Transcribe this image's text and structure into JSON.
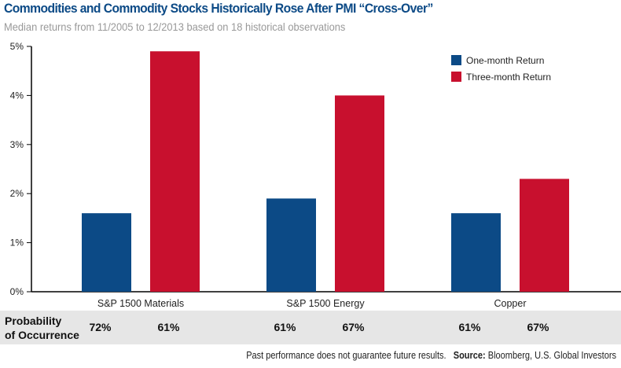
{
  "chart_data": {
    "type": "bar",
    "title": "Commodities and Commodity Stocks Historically Rose After PMI “Cross-Over”",
    "subtitle": "Median returns from 11/2005 to 12/2013 based on 18 historical observations",
    "categories": [
      "S&P 1500 Materials",
      "S&P 1500 Energy",
      "Copper"
    ],
    "series": [
      {
        "name": "One-month Return",
        "color": "#0c4a86",
        "values": [
          1.6,
          1.9,
          1.6
        ]
      },
      {
        "name": "Three-month Return",
        "color": "#c8102e",
        "values": [
          4.9,
          4.0,
          2.3
        ]
      }
    ],
    "ylim": [
      0,
      5
    ],
    "yticks": [
      "0%",
      "1%",
      "2%",
      "3%",
      "4%",
      "5%"
    ],
    "legend": "top-right",
    "grid": false,
    "probability": {
      "label_line1": "Probability",
      "label_line2": "of Occurrence",
      "values": [
        [
          "72%",
          "61%"
        ],
        [
          "61%",
          "67%"
        ],
        [
          "61%",
          "67%"
        ]
      ]
    }
  },
  "footer": {
    "disclaimer": "Past performance does not guarantee future results.",
    "source_label": "Source:",
    "source": "Bloomberg, U.S. Global Investors"
  }
}
